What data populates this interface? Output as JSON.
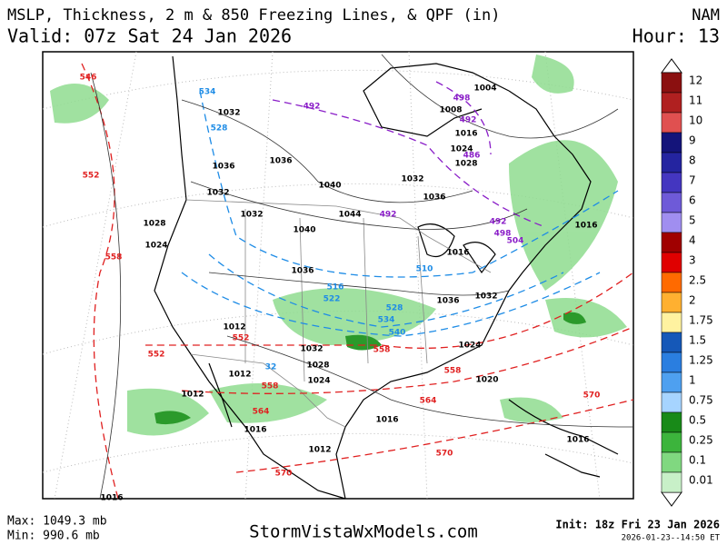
{
  "header": {
    "title": "MSLP, Thickness, 2 m & 850 Freezing Lines, & QPF (in)",
    "valid": "Valid: 07z Sat 24 Jan 2026",
    "model": "NAM",
    "hour": "Hour: 13"
  },
  "legend": [
    {
      "label": "12",
      "color": "#8b1010"
    },
    {
      "label": "11",
      "color": "#b02020"
    },
    {
      "label": "10",
      "color": "#e05050"
    },
    {
      "label": "9",
      "color": "#14147a"
    },
    {
      "label": "8",
      "color": "#2424a0"
    },
    {
      "label": "7",
      "color": "#4436c0"
    },
    {
      "label": "6",
      "color": "#6e5ad8"
    },
    {
      "label": "5",
      "color": "#a08ef0"
    },
    {
      "label": "4",
      "color": "#a00000"
    },
    {
      "label": "3",
      "color": "#e00000"
    },
    {
      "label": "2.5",
      "color": "#ff6a00"
    },
    {
      "label": "2",
      "color": "#ffb030"
    },
    {
      "label": "1.75",
      "color": "#fff2a0"
    },
    {
      "label": "1.5",
      "color": "#1558b8"
    },
    {
      "label": "1.25",
      "color": "#2a7ee0"
    },
    {
      "label": "1",
      "color": "#4ea0f0"
    },
    {
      "label": "0.75",
      "color": "#a6d4ff"
    },
    {
      "label": "0.5",
      "color": "#188a18"
    },
    {
      "label": "0.25",
      "color": "#3cb43c"
    },
    {
      "label": "0.1",
      "color": "#80d880"
    },
    {
      "label": "0.01",
      "color": "#c8f0c8"
    }
  ],
  "map": {
    "contours": [
      {
        "color": "#e02020",
        "labels": [
          "546",
          "552",
          "558",
          "552",
          "552",
          "558",
          "564",
          "570",
          "564",
          "558",
          "570",
          "570",
          "558"
        ]
      },
      {
        "color": "#8a1ec8",
        "labels": [
          "492",
          "498",
          "492",
          "486",
          "492",
          "492",
          "498",
          "504"
        ]
      },
      {
        "color": "#1e8ce6",
        "labels": [
          "534",
          "528",
          "510",
          "516",
          "522",
          "528",
          "534",
          "540",
          "32"
        ]
      },
      {
        "color": "#000000",
        "labels": [
          "1032",
          "1036",
          "1036",
          "1032",
          "1040",
          "1032",
          "1036",
          "1044",
          "1040",
          "1028",
          "1032",
          "1036",
          "1016",
          "1008",
          "1016",
          "1024",
          "1028",
          "1016",
          "1032",
          "1036",
          "1024",
          "1032",
          "1028",
          "1024",
          "1012",
          "1012",
          "1012",
          "1016",
          "1016",
          "1012",
          "1016",
          "1020",
          "1016",
          "1004",
          "1024"
        ]
      }
    ]
  },
  "footer": {
    "max": "Max: 1049.3 mb",
    "min": "Min: 990.6 mb",
    "site": "StormVistaWxModels.com",
    "init": "Init: 18z Fri 23 Jan 2026",
    "stamp": "2026-01-23--14:50 ET"
  }
}
